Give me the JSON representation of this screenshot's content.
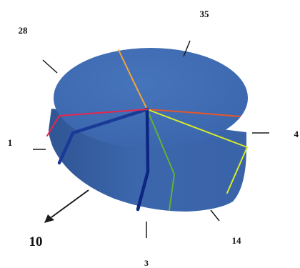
{
  "chart_data": {
    "type": "pie",
    "style": "3d-disc",
    "title": "",
    "slices": [
      {
        "label": "35",
        "value": 35,
        "edge_color": "#f2a33a"
      },
      {
        "label": "4",
        "value": 4,
        "edge_color": "#e5582b"
      },
      {
        "label": "14",
        "value": 14,
        "edge_color": "#d8ec28"
      },
      {
        "label": "3",
        "value": 3,
        "edge_color": "#5fb236"
      },
      {
        "label": "10",
        "value": 10,
        "edge_color": "#0d2680"
      },
      {
        "label": "1",
        "value": 1,
        "edge_color": "#1a3a98"
      },
      {
        "label": "28",
        "value": 28,
        "edge_color": "#e8264a"
      }
    ],
    "exploded_label": "10",
    "colors": {
      "top": "#3f6cb3",
      "side": "#3a64aa",
      "side_dark": "#2f5594",
      "leader": "#1a1a1a"
    }
  }
}
